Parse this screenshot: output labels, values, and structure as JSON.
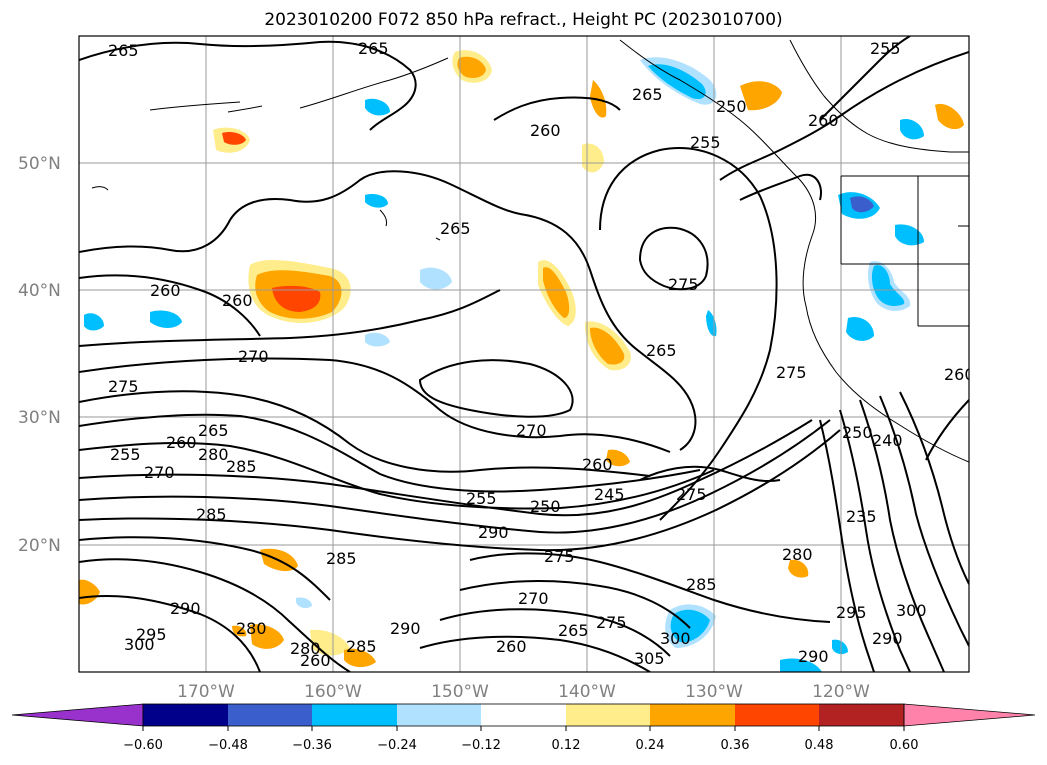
{
  "title": "2023010200 F072 850 hPa refract., Height PC (2023010700)",
  "lat_labels": [
    "50°N",
    "40°N",
    "30°N",
    "20°N"
  ],
  "lon_labels": [
    "170°W",
    "160°W",
    "150°W",
    "140°W",
    "130°W",
    "120°W"
  ],
  "colorbar": {
    "ticks": [
      "−0.60",
      "−0.48",
      "−0.36",
      "−0.24",
      "−0.12",
      "0.12",
      "0.24",
      "0.36",
      "0.48",
      "0.60"
    ],
    "colors": [
      "#9932cc",
      "#00008b",
      "#3a5fcd",
      "#00bfff",
      "#b0e2ff",
      "#ffffff",
      "#ffec8b",
      "#ffa500",
      "#ff4500",
      "#b22222",
      "#ff82ab"
    ]
  },
  "contour_labels": [
    "265",
    "265",
    "255",
    "260",
    "265",
    "250",
    "260",
    "255",
    "260",
    "265",
    "275",
    "260",
    "260",
    "270",
    "265",
    "275",
    "270",
    "275",
    "255",
    "260",
    "265",
    "280",
    "285",
    "270",
    "260",
    "255",
    "250",
    "245",
    "275",
    "250",
    "290",
    "285",
    "240",
    "235",
    "285",
    "295",
    "300",
    "290",
    "290",
    "305",
    "300",
    "290",
    "280",
    "285",
    "280",
    "270",
    "265",
    "275",
    "260",
    "275",
    "285",
    "260",
    "280",
    "300",
    "290",
    "295"
  ]
}
